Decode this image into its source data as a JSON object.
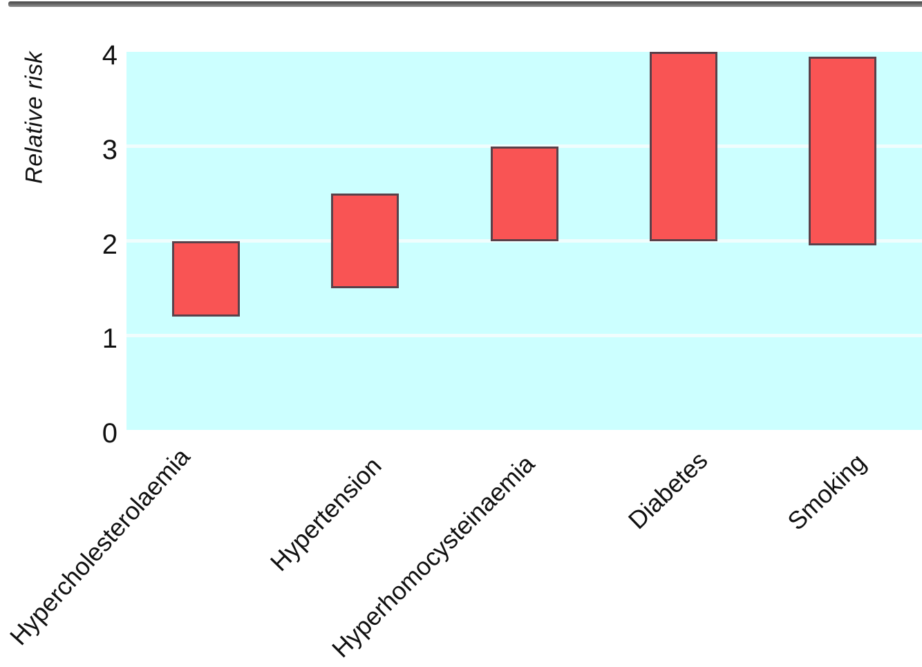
{
  "chart_data": {
    "type": "bar",
    "bar_style": "floating-range",
    "title": "",
    "xlabel": "",
    "ylabel": "Relative risk",
    "ylim": [
      0,
      4
    ],
    "yticks": [
      "0",
      "1",
      "2",
      "3",
      "4"
    ],
    "gridlines_at": [
      1,
      2,
      3
    ],
    "legend": "none",
    "categories": [
      "Hypercholesterolaemia",
      "Hypertension",
      "Hyperhomocysteinaemia",
      "Diabetes",
      "Smoking"
    ],
    "bars": [
      {
        "label": "Hypercholesterolaemia",
        "low": 1.2,
        "high": 2.0
      },
      {
        "label": "Hypertension",
        "low": 1.5,
        "high": 2.5
      },
      {
        "label": "Hyperhomocysteinaemia",
        "low": 2.0,
        "high": 3.0
      },
      {
        "label": "Diabetes",
        "low": 2.0,
        "high": 4.0
      },
      {
        "label": "Smoking",
        "low": 1.95,
        "high": 3.95
      }
    ],
    "colors": {
      "plot_background": "#ccffff",
      "bar_fill": "#f95454",
      "bar_border": "#59414a",
      "gridline": "#f0fdfd",
      "text": "#111111",
      "top_rule": "#555555",
      "page_background": "#ffffff"
    }
  }
}
